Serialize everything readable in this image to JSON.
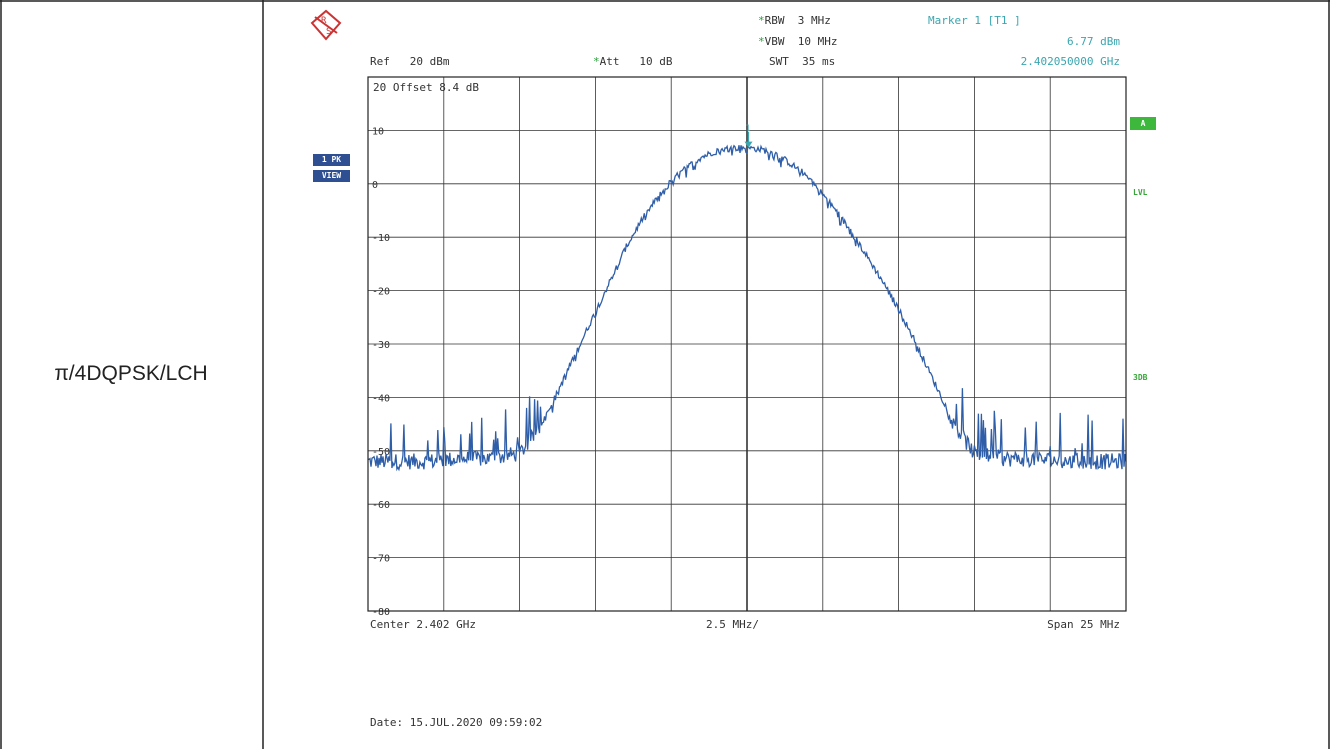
{
  "row_label": "π/4DQPSK/LCH",
  "header": {
    "rbw_label": "RBW",
    "rbw_value": "3 MHz",
    "vbw_label": "VBW",
    "vbw_value": "10 MHz",
    "ref_label": "Ref",
    "ref_value": "20 dBm",
    "att_label": "Att",
    "att_value": "10 dB",
    "swt_label": "SWT",
    "swt_value": "35 ms",
    "marker_title": "Marker 1 [T1 ]",
    "marker_level": "6.77 dBm",
    "marker_freq": "2.402050000 GHz",
    "offset_text": "20 Offset   8.4 dB",
    "star": "*"
  },
  "badges": {
    "trace_top": "1 PK",
    "trace_bottom": "VIEW",
    "a": "A",
    "lvl": "LVL",
    "db3": "3DB"
  },
  "footer": {
    "center": "Center  2.402 GHz",
    "per_div": "2.5 MHz/",
    "span": "Span  25 MHz",
    "date": "Date: 15.JUL.2020  09:59:02"
  },
  "colors": {
    "trace": "#2f5ea8",
    "grid": "#333333",
    "marker": "#3aa6b0",
    "accent_green": "#3db83d",
    "badge_blue": "#2f4f93"
  },
  "chart_data": {
    "type": "line",
    "title": "",
    "xlabel": "",
    "ylabel": "",
    "x_unit": "MHz",
    "y_unit": "dBm",
    "xlim": [
      2389.5,
      2414.5
    ],
    "ylim": [
      -80,
      20
    ],
    "y_ticks": [
      10,
      0,
      -10,
      -20,
      -30,
      -40,
      -50,
      -60,
      -70,
      -80
    ],
    "y_tick_labels": [
      "10",
      "0",
      "-10",
      "-20",
      "-30",
      "-40",
      "-50",
      "-60",
      "-70",
      "-80"
    ],
    "grid": true,
    "series": [
      {
        "name": "",
        "x": [
          2389.5,
          2390.5,
          2391.5,
          2392.5,
          2393.5,
          2394.5,
          2395.0,
          2395.5,
          2396.0,
          2396.5,
          2397.0,
          2397.5,
          2398.0,
          2398.5,
          2399.0,
          2399.5,
          2400.0,
          2400.5,
          2401.0,
          2401.5,
          2402.0,
          2402.5,
          2403.0,
          2403.5,
          2404.0,
          2404.5,
          2405.0,
          2405.5,
          2406.0,
          2406.5,
          2407.0,
          2407.5,
          2408.0,
          2408.5,
          2409.0,
          2409.5,
          2410.5,
          2411.5,
          2412.5,
          2413.5,
          2414.5
        ],
        "y": [
          -52,
          -52,
          -52,
          -51.5,
          -51.5,
          -50.5,
          -47,
          -42,
          -36,
          -30,
          -24,
          -18,
          -12,
          -7,
          -3,
          0.5,
          3,
          5,
          6.2,
          6.7,
          6.77,
          6.4,
          5.5,
          3.5,
          1.5,
          -2,
          -5.5,
          -9.5,
          -14,
          -18.5,
          -23.5,
          -29,
          -35,
          -41,
          -46.5,
          -50.5,
          -51.5,
          -51.5,
          -52,
          -52,
          -52
        ]
      }
    ],
    "marker": {
      "label": "1",
      "x": 2402.05,
      "y": 6.77
    }
  }
}
